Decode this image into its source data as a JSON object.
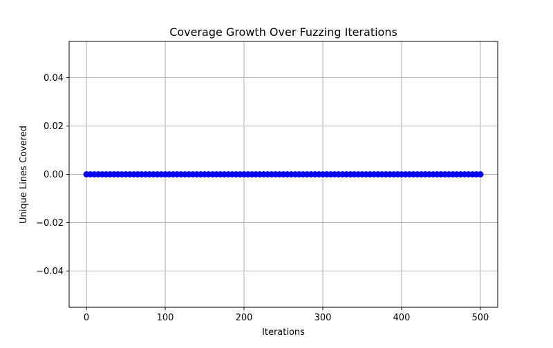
{
  "chart_data": {
    "type": "line",
    "title": "Coverage Growth Over Fuzzing Iterations",
    "xlabel": "Iterations",
    "ylabel": "Unique Lines Covered",
    "xlim": [
      -22,
      522
    ],
    "ylim": [
      -0.055,
      0.055
    ],
    "x_ticks": [
      0,
      100,
      200,
      300,
      400,
      500
    ],
    "y_ticks": [
      -0.04,
      -0.02,
      0.0,
      0.02,
      0.04
    ],
    "x_tick_labels": [
      "0",
      "100",
      "200",
      "300",
      "400",
      "500"
    ],
    "y_tick_labels": [
      "−0.04",
      "−0.02",
      "0.00",
      "0.02",
      "0.04"
    ],
    "grid": true,
    "series": [
      {
        "color": "#0000ff",
        "marker": "circle",
        "x": [
          0,
          5,
          10,
          15,
          20,
          25,
          30,
          35,
          40,
          45,
          50,
          55,
          60,
          65,
          70,
          75,
          80,
          85,
          90,
          95,
          100,
          105,
          110,
          115,
          120,
          125,
          130,
          135,
          140,
          145,
          150,
          155,
          160,
          165,
          170,
          175,
          180,
          185,
          190,
          195,
          200,
          205,
          210,
          215,
          220,
          225,
          230,
          235,
          240,
          245,
          250,
          255,
          260,
          265,
          270,
          275,
          280,
          285,
          290,
          295,
          300,
          305,
          310,
          315,
          320,
          325,
          330,
          335,
          340,
          345,
          350,
          355,
          360,
          365,
          370,
          375,
          380,
          385,
          390,
          395,
          400,
          405,
          410,
          415,
          420,
          425,
          430,
          435,
          440,
          445,
          450,
          455,
          460,
          465,
          470,
          475,
          480,
          485,
          490,
          495,
          500
        ],
        "y": [
          0,
          0,
          0,
          0,
          0,
          0,
          0,
          0,
          0,
          0,
          0,
          0,
          0,
          0,
          0,
          0,
          0,
          0,
          0,
          0,
          0,
          0,
          0,
          0,
          0,
          0,
          0,
          0,
          0,
          0,
          0,
          0,
          0,
          0,
          0,
          0,
          0,
          0,
          0,
          0,
          0,
          0,
          0,
          0,
          0,
          0,
          0,
          0,
          0,
          0,
          0,
          0,
          0,
          0,
          0,
          0,
          0,
          0,
          0,
          0,
          0,
          0,
          0,
          0,
          0,
          0,
          0,
          0,
          0,
          0,
          0,
          0,
          0,
          0,
          0,
          0,
          0,
          0,
          0,
          0,
          0,
          0,
          0,
          0,
          0,
          0,
          0,
          0,
          0,
          0,
          0,
          0,
          0,
          0,
          0,
          0,
          0,
          0,
          0,
          0,
          0
        ]
      }
    ]
  }
}
